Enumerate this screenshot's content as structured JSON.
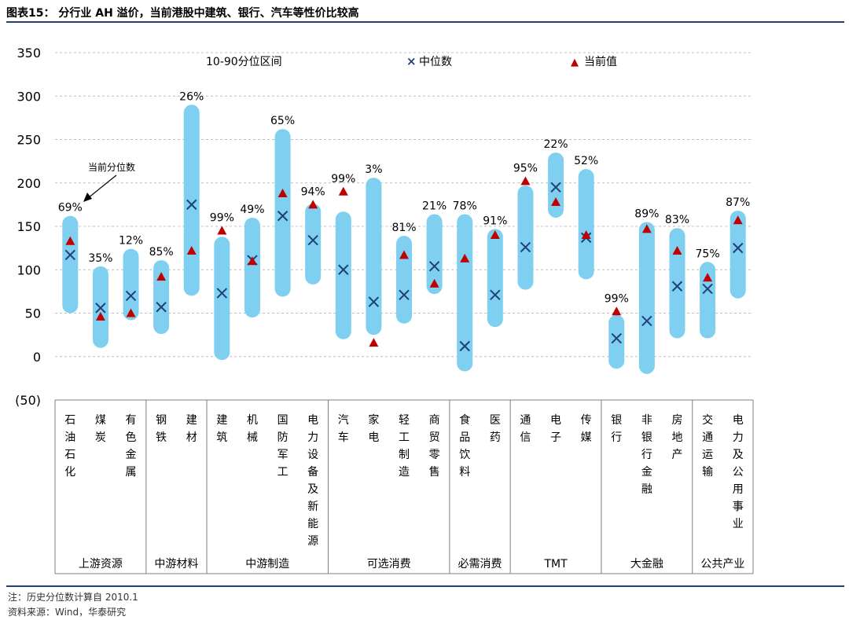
{
  "page_title": "图表15： 分行业 AH 溢价，当前港股中建筑、银行、汽车等性价比较高",
  "notes": {
    "history": "注：历史分位数计算自 2010.1",
    "source": "资料来源：Wind，华泰研究"
  },
  "chart_data": {
    "type": "range-bar",
    "ylim": [
      -50,
      350
    ],
    "yticks": [
      "350",
      "300",
      "250",
      "200",
      "150",
      "100",
      "50",
      "0",
      "(50)"
    ],
    "ytick_values": [
      350,
      300,
      250,
      200,
      150,
      100,
      50,
      0,
      -50
    ],
    "grid": true,
    "colors": {
      "band": "#7fd0f0",
      "median": "#1f3f7a",
      "current": "#c00000",
      "grid": "#bfbfbf"
    },
    "legend": {
      "band": "10-90分位区间",
      "median": "中位数",
      "current": "当前值",
      "median_marker": "×",
      "current_marker": "▲"
    },
    "annotation": "当前分位数",
    "categories": [
      {
        "name": "石油石化",
        "p10": 50,
        "p90": 162,
        "median": 117,
        "current": 133,
        "pct": "69%"
      },
      {
        "name": "煤炭",
        "p10": 10,
        "p90": 104,
        "median": 56,
        "current": 46,
        "pct": "35%"
      },
      {
        "name": "有色金属",
        "p10": 42,
        "p90": 124,
        "median": 70,
        "current": 50,
        "pct": "12%"
      },
      {
        "name": "钢铁",
        "p10": 26,
        "p90": 111,
        "median": 57,
        "current": 92,
        "pct": "85%"
      },
      {
        "name": "建材",
        "p10": 70,
        "p90": 290,
        "median": 175,
        "current": 122,
        "pct": "26%"
      },
      {
        "name": "建筑",
        "p10": -4,
        "p90": 138,
        "median": 73,
        "current": 145,
        "pct": "99%"
      },
      {
        "name": "机械",
        "p10": 45,
        "p90": 160,
        "median": 111,
        "current": 110,
        "pct": "49%"
      },
      {
        "name": "国防军工",
        "p10": 69,
        "p90": 262,
        "median": 162,
        "current": 188,
        "pct": "65%"
      },
      {
        "name": "电力设备及新能源",
        "p10": 83,
        "p90": 176,
        "median": 134,
        "current": 175,
        "pct": "94%"
      },
      {
        "name": "汽车",
        "p10": 20,
        "p90": 167,
        "median": 100,
        "current": 190,
        "pct": "99%"
      },
      {
        "name": "家电",
        "p10": 25,
        "p90": 206,
        "median": 63,
        "current": 16,
        "pct": "3%"
      },
      {
        "name": "轻工制造",
        "p10": 38,
        "p90": 139,
        "median": 71,
        "current": 117,
        "pct": "81%"
      },
      {
        "name": "商贸零售",
        "p10": 72,
        "p90": 164,
        "median": 104,
        "current": 84,
        "pct": "21%"
      },
      {
        "name": "食品饮料",
        "p10": -17,
        "p90": 164,
        "median": 12,
        "current": 113,
        "pct": "78%"
      },
      {
        "name": "医药",
        "p10": 34,
        "p90": 147,
        "median": 71,
        "current": 140,
        "pct": "91%"
      },
      {
        "name": "通信",
        "p10": 77,
        "p90": 197,
        "median": 126,
        "current": 202,
        "pct": "95%"
      },
      {
        "name": "电子",
        "p10": 160,
        "p90": 235,
        "median": 195,
        "current": 178,
        "pct": "22%"
      },
      {
        "name": "传媒",
        "p10": 89,
        "p90": 216,
        "median": 137,
        "current": 140,
        "pct": "52%"
      },
      {
        "name": "银行",
        "p10": -14,
        "p90": 48,
        "median": 21,
        "current": 52,
        "pct": "99%"
      },
      {
        "name": "非银行金融",
        "p10": -20,
        "p90": 155,
        "median": 41,
        "current": 147,
        "pct": "89%"
      },
      {
        "name": "房地产",
        "p10": 21,
        "p90": 148,
        "median": 81,
        "current": 122,
        "pct": "83%"
      },
      {
        "name": "交通运输",
        "p10": 21,
        "p90": 109,
        "median": 78,
        "current": 91,
        "pct": "75%"
      },
      {
        "name": "电力及公用事业",
        "p10": 67,
        "p90": 168,
        "median": 125,
        "current": 157,
        "pct": "87%"
      }
    ],
    "groups": [
      {
        "name": "上游资源",
        "count": 3
      },
      {
        "name": "中游材料",
        "count": 2
      },
      {
        "name": "中游制造",
        "count": 4
      },
      {
        "name": "可选消费",
        "count": 4
      },
      {
        "name": "必需消费",
        "count": 2
      },
      {
        "name": "TMT",
        "count": 3
      },
      {
        "name": "大金融",
        "count": 3
      },
      {
        "name": "公共产业",
        "count": 2
      }
    ]
  }
}
